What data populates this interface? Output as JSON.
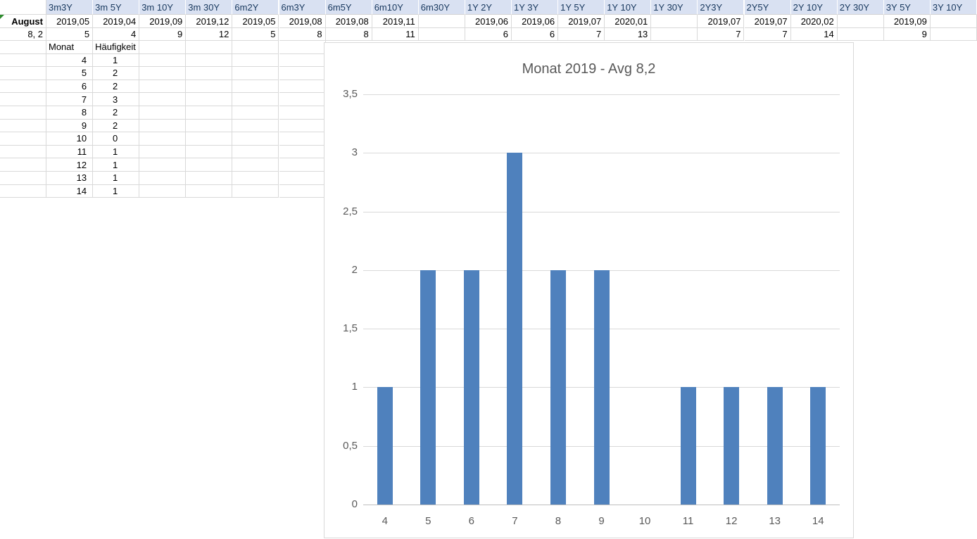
{
  "sheet": {
    "columns": [
      "",
      "3m3Y",
      "3m 5Y",
      "3m 10Y",
      "3m 30Y",
      "6m2Y",
      "6m3Y",
      "6m5Y",
      "6m10Y",
      "6m30Y",
      "1Y 2Y",
      "1Y 3Y",
      "1Y 5Y",
      "1Y 10Y",
      "1Y 30Y",
      "2Y3Y",
      "2Y5Y",
      "2Y 10Y",
      "2Y 30Y",
      "3Y 5Y",
      "3Y 10Y"
    ],
    "row_august": {
      "label": "August",
      "values": [
        "2019,05",
        "2019,04",
        "2019,09",
        "2019,12",
        "2019,05",
        "2019,08",
        "2019,08",
        "2019,11",
        "",
        "2019,06",
        "2019,06",
        "2019,07",
        "2020,01",
        "",
        "2019,07",
        "2019,07",
        "2020,02",
        "",
        "2019,09",
        ""
      ]
    },
    "row_avg": {
      "label": "8, 2",
      "values": [
        "5",
        "4",
        "9",
        "12",
        "5",
        "8",
        "8",
        "11",
        "",
        "6",
        "6",
        "7",
        "13",
        "",
        "7",
        "7",
        "14",
        "",
        "9",
        ""
      ]
    },
    "freq_table": {
      "col1_header": "Monat",
      "col2_header": "Häufigkeit",
      "rows": [
        [
          "4",
          "1"
        ],
        [
          "5",
          "2"
        ],
        [
          "6",
          "2"
        ],
        [
          "7",
          "3"
        ],
        [
          "8",
          "2"
        ],
        [
          "9",
          "2"
        ],
        [
          "10",
          "0"
        ],
        [
          "11",
          "1"
        ],
        [
          "12",
          "1"
        ],
        [
          "13",
          "1"
        ],
        [
          "14",
          "1"
        ]
      ]
    }
  },
  "chart_data": {
    "type": "bar",
    "title": "Monat 2019 - Avg 8,2",
    "categories": [
      "4",
      "5",
      "6",
      "7",
      "8",
      "9",
      "10",
      "11",
      "12",
      "13",
      "14"
    ],
    "values": [
      1,
      2,
      2,
      3,
      2,
      2,
      0,
      1,
      1,
      1,
      1
    ],
    "xlabel": "",
    "ylabel": "",
    "ylim": [
      0,
      3.5
    ],
    "ytick_labels": [
      "0",
      "0,5",
      "1",
      "1,5",
      "2",
      "2,5",
      "3",
      "3,5"
    ],
    "grid": true,
    "legend": false,
    "bar_color": "#4F81BD"
  },
  "colors": {
    "header_bg": "#D9E1F2",
    "header_text": "#17375D",
    "sheet_gridline": "#D9D9D9",
    "chart_border": "#D9D9D9",
    "chart_gridline": "#D9D9D9",
    "axis_line": "#BFBFBF",
    "axis_text": "#595959",
    "bar": "#4F81BD",
    "error_triangle": "#2E8B2E"
  }
}
